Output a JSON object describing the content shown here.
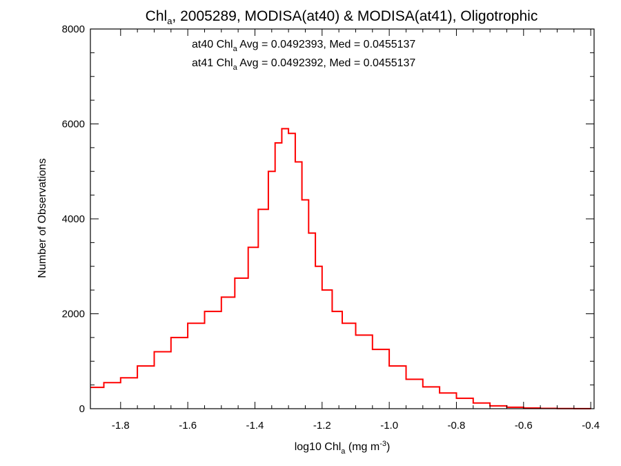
{
  "chart_data": {
    "type": "line",
    "step": true,
    "title": {
      "pre": "Chl",
      "sub": "a",
      "post": ", 2005289, MODISA(at40) & MODISA(at41), Oligotrophic"
    },
    "xlabel": {
      "pre": "log10 Chl",
      "sub": "a",
      "mid": " (mg m",
      "sup": "-3",
      "post": ")"
    },
    "ylabel": "Number of Observations",
    "xlim": [
      -1.89,
      -0.39
    ],
    "ylim": [
      0,
      8000
    ],
    "xticks": [
      -1.8,
      -1.6,
      -1.4,
      -1.2,
      -1.0,
      -0.8,
      -0.6,
      -0.4
    ],
    "xtick_labels": [
      "-1.8",
      "-1.6",
      "-1.4",
      "-1.2",
      "-1.0",
      "-0.8",
      "-0.6",
      "-0.4"
    ],
    "yticks": [
      0,
      2000,
      4000,
      6000,
      8000
    ],
    "ytick_labels": [
      "0",
      "2000",
      "4000",
      "6000",
      "8000"
    ],
    "grid": false,
    "annotations": [
      {
        "pre": "at40 Chl",
        "sub": "a",
        "post": " Avg = 0.0492393, Med = 0.0455137",
        "color": "#000000"
      },
      {
        "pre": "at41 Chl",
        "sub": "a",
        "post": " Avg = 0.0492392, Med = 0.0455137",
        "color": "#ff0000"
      }
    ],
    "series": [
      {
        "color": "#ff0000",
        "x": [
          -1.89,
          -1.85,
          -1.8,
          -1.75,
          -1.7,
          -1.65,
          -1.6,
          -1.55,
          -1.5,
          -1.46,
          -1.42,
          -1.39,
          -1.36,
          -1.34,
          -1.32,
          -1.3,
          -1.28,
          -1.26,
          -1.24,
          -1.22,
          -1.2,
          -1.17,
          -1.14,
          -1.1,
          -1.05,
          -1.0,
          -0.95,
          -0.9,
          -0.85,
          -0.8,
          -0.75,
          -0.7,
          -0.65,
          -0.6,
          -0.55,
          -0.5,
          -0.45,
          -0.4
        ],
        "values": [
          450,
          550,
          650,
          900,
          1200,
          1500,
          1800,
          2050,
          2350,
          2750,
          3400,
          4200,
          5000,
          5600,
          5900,
          5800,
          5200,
          4400,
          3700,
          3000,
          2500,
          2050,
          1800,
          1550,
          1250,
          900,
          620,
          460,
          330,
          220,
          120,
          60,
          30,
          15,
          8,
          4,
          2,
          0
        ]
      },
      {
        "color": "#000000",
        "x": [
          -1.89,
          -1.85,
          -1.8,
          -1.75,
          -1.7,
          -1.65,
          -1.6,
          -1.55,
          -1.5,
          -1.46,
          -1.42,
          -1.39,
          -1.36,
          -1.34,
          -1.32,
          -1.3,
          -1.28,
          -1.26,
          -1.24,
          -1.22,
          -1.2,
          -1.17,
          -1.14,
          -1.1,
          -1.05,
          -1.0,
          -0.95,
          -0.9,
          -0.85,
          -0.8,
          -0.75,
          -0.7,
          -0.65,
          -0.6,
          -0.55,
          -0.5,
          -0.45,
          -0.4
        ],
        "values": [
          450,
          550,
          650,
          900,
          1200,
          1500,
          1800,
          2050,
          2350,
          2750,
          3400,
          4200,
          5000,
          5600,
          5900,
          5800,
          5200,
          4400,
          3700,
          3000,
          2500,
          2050,
          1800,
          1550,
          1250,
          900,
          620,
          460,
          330,
          220,
          120,
          60,
          30,
          15,
          8,
          4,
          2,
          0
        ]
      }
    ]
  }
}
